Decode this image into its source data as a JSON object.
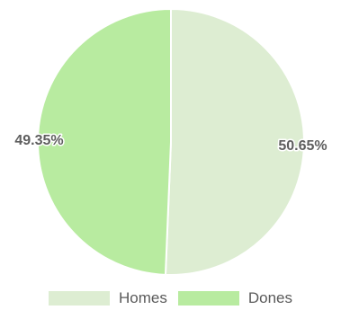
{
  "chart_data": {
    "type": "pie",
    "categories": [
      "Homes",
      "Dones"
    ],
    "values": [
      50.65,
      49.35
    ],
    "value_labels": [
      "50.65%",
      "49.35%"
    ],
    "colors": [
      "#ddedd2",
      "#b8eba0"
    ],
    "start_angle_deg": 0,
    "direction": "clockwise",
    "legend_position": "bottom"
  }
}
